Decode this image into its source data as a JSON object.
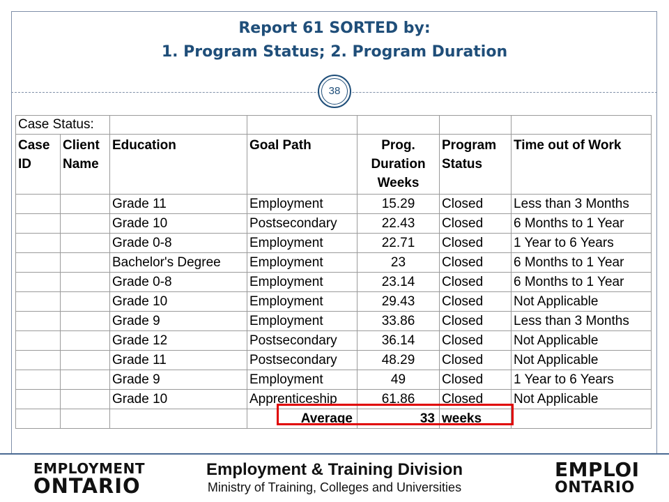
{
  "slide": {
    "title_line1": "Report 61 SORTED by:",
    "title_line2": "1. Program Status; 2. Program Duration",
    "page_number": "38"
  },
  "table": {
    "case_status_label": "Case Status:",
    "headers": {
      "case_id": [
        "Case",
        "ID"
      ],
      "client_name": [
        "Client",
        "Name"
      ],
      "education": "Education",
      "goal_path": "Goal Path",
      "duration": [
        "Prog.",
        "Duration",
        "Weeks"
      ],
      "status": [
        "Program",
        "Status"
      ],
      "time_out": "Time out of Work"
    },
    "rows": [
      {
        "education": "Grade 11",
        "goal_path": "Employment",
        "duration": "15.29",
        "status": "Closed",
        "time_out": "Less than 3 Months"
      },
      {
        "education": "Grade 10",
        "goal_path": "Postsecondary",
        "duration": "22.43",
        "status": "Closed",
        "time_out": "6 Months to 1 Year"
      },
      {
        "education": "Grade 0-8",
        "goal_path": "Employment",
        "duration": "22.71",
        "status": "Closed",
        "time_out": "1 Year to 6 Years"
      },
      {
        "education": "Bachelor's Degree",
        "goal_path": "Employment",
        "duration": "23",
        "status": "Closed",
        "time_out": "6 Months to 1 Year"
      },
      {
        "education": "Grade 0-8",
        "goal_path": "Employment",
        "duration": "23.14",
        "status": "Closed",
        "time_out": "6 Months to 1 Year"
      },
      {
        "education": "Grade 10",
        "goal_path": "Employment",
        "duration": "29.43",
        "status": "Closed",
        "time_out": "Not Applicable"
      },
      {
        "education": "Grade 9",
        "goal_path": "Employment",
        "duration": "33.86",
        "status": "Closed",
        "time_out": "Less than 3 Months"
      },
      {
        "education": "Grade 12",
        "goal_path": "Postsecondary",
        "duration": "36.14",
        "status": "Closed",
        "time_out": "Not Applicable"
      },
      {
        "education": "Grade 11",
        "goal_path": "Postsecondary",
        "duration": "48.29",
        "status": "Closed",
        "time_out": "Not Applicable"
      },
      {
        "education": "Grade 9",
        "goal_path": "Employment",
        "duration": "49",
        "status": "Closed",
        "time_out": "1 Year to 6 Years"
      },
      {
        "education": "Grade 10",
        "goal_path": "Apprenticeship",
        "duration": "61.86",
        "status": "Closed",
        "time_out": "Not Applicable"
      }
    ],
    "average": {
      "label": "Average",
      "value": "33",
      "unit": "weeks"
    }
  },
  "footer": {
    "logo_left_line1": "EMPLOYMENT",
    "logo_left_line2": "ONTARIO",
    "division_title": "Employment & Training Division",
    "division_subtitle": "Ministry of Training, Colleges and Universities",
    "logo_right_line1": "EMPLOI",
    "logo_right_line2": "ONTARIO"
  },
  "colors": {
    "title": "#1f4e79",
    "highlight": "#e00000",
    "frame": "#7f8fa8"
  }
}
